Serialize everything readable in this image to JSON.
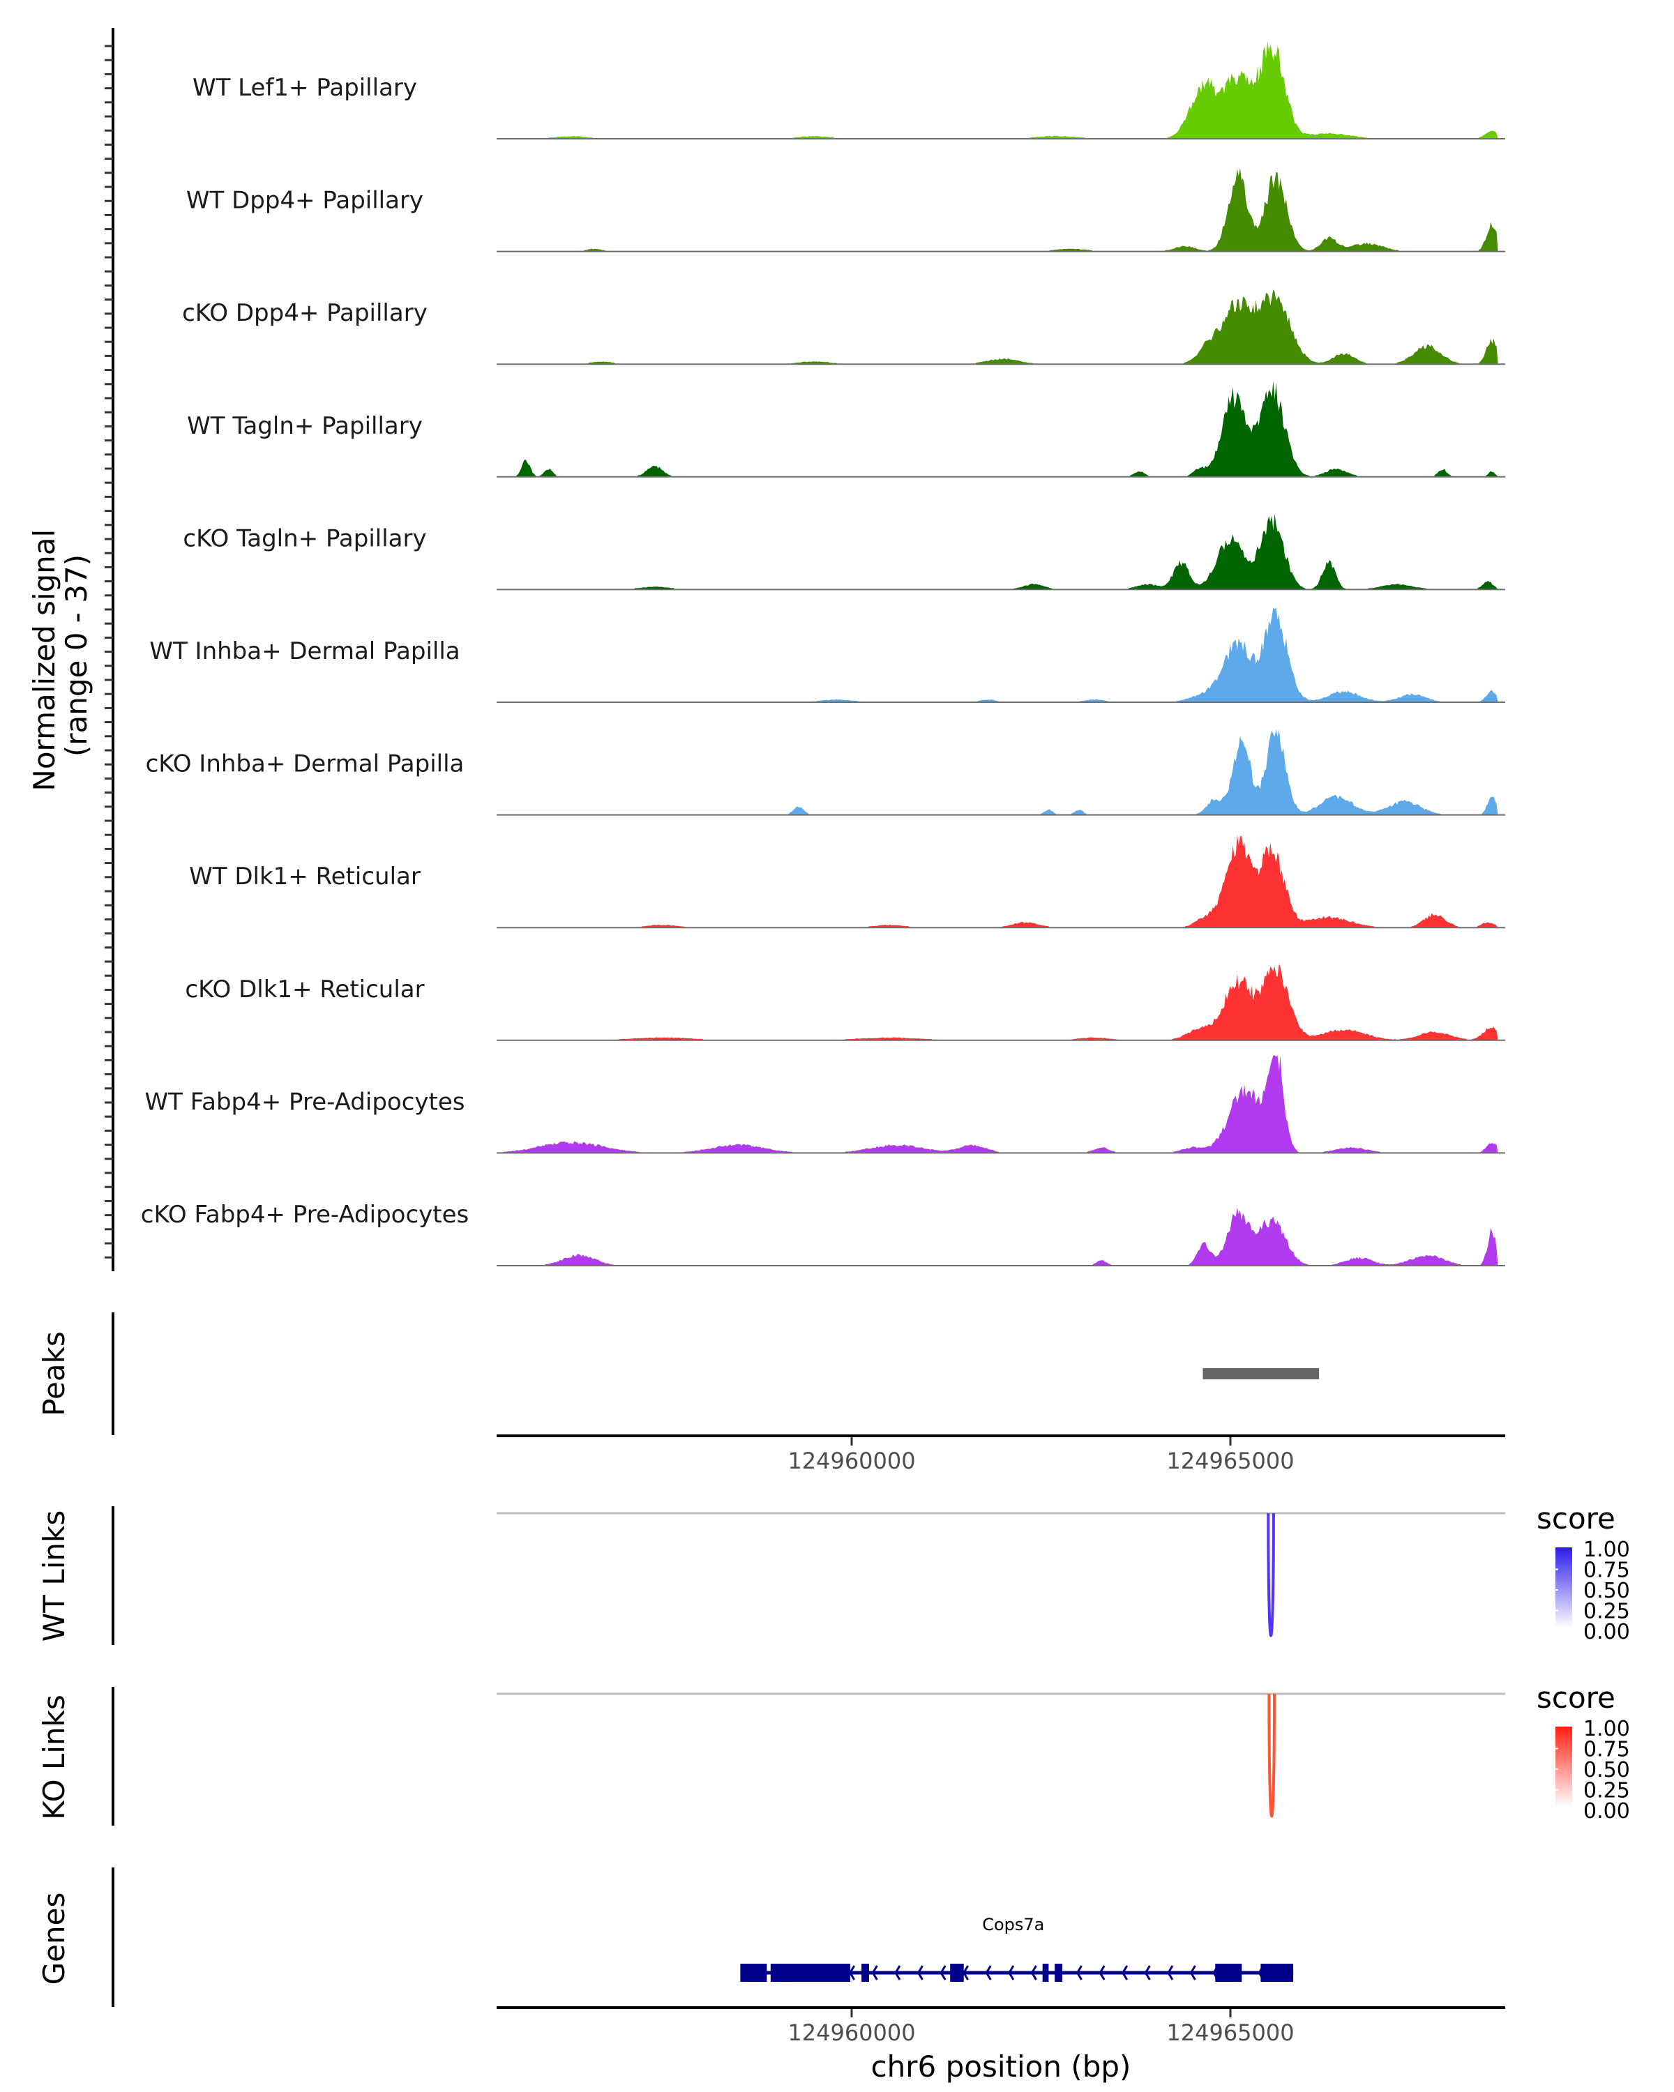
{
  "chart_data": {
    "type": "area",
    "title": "",
    "region": {
      "chrom": "chr6",
      "start": 124955313,
      "end": 124968628
    },
    "xlabel": "chr6 position (bp)",
    "x_ticks": [
      124960000,
      124965000
    ],
    "x_tick_labels": [
      "124960000",
      "124965000"
    ],
    "coverage": {
      "ylabel": "Normalized signal\n(range 0 - 37)",
      "ylabel_lines": [
        "Normalized signal",
        "(range 0 - 37)"
      ],
      "ylim": [
        0,
        37
      ],
      "tracks": [
        {
          "name": "WT Lef1+ Papillary",
          "color": "#66CC00",
          "peaks": [
            [
              124964650,
              20,
              250
            ],
            [
              124965100,
              22,
              240
            ],
            [
              124965550,
              34,
              230
            ],
            [
              124966300,
              2,
              400
            ],
            [
              124968450,
              3,
              120
            ],
            [
              124956300,
              1,
              300
            ],
            [
              124959500,
              1,
              300
            ],
            [
              124962700,
              1,
              400
            ]
          ]
        },
        {
          "name": "WT Dpp4+ Papillary",
          "color": "#448B00",
          "peaks": [
            [
              124965100,
              29,
              180
            ],
            [
              124965600,
              28,
              200
            ],
            [
              124966300,
              5,
              150
            ],
            [
              124966800,
              3,
              300
            ],
            [
              124968450,
              10,
              100
            ],
            [
              124964400,
              2,
              200
            ],
            [
              124956600,
              1,
              150
            ],
            [
              124962900,
              1,
              300
            ]
          ]
        },
        {
          "name": "cKO Dpp4+ Papillary",
          "color": "#448B00",
          "peaks": [
            [
              124964700,
              5,
              200
            ],
            [
              124965100,
              22,
              300
            ],
            [
              124965600,
              24,
              280
            ],
            [
              124966500,
              4,
              200
            ],
            [
              124967600,
              7,
              250
            ],
            [
              124968450,
              9,
              100
            ],
            [
              124962000,
              2,
              300
            ],
            [
              124956700,
              1,
              200
            ],
            [
              124959500,
              1,
              300
            ]
          ]
        },
        {
          "name": "WT Tagln+ Papillary",
          "color": "#006400",
          "peaks": [
            [
              124965050,
              30,
              220
            ],
            [
              124965550,
              33,
              230
            ],
            [
              124964600,
              3,
              120
            ],
            [
              124966400,
              3,
              200
            ],
            [
              124955700,
              6,
              80
            ],
            [
              124956000,
              3,
              80
            ],
            [
              124957400,
              4,
              150
            ],
            [
              124967800,
              3,
              80
            ],
            [
              124968450,
              2,
              60
            ],
            [
              124963800,
              2,
              100
            ]
          ]
        },
        {
          "name": "cKO Tagln+ Papillary",
          "color": "#006400",
          "peaks": [
            [
              124964350,
              10,
              150
            ],
            [
              124965000,
              19,
              250
            ],
            [
              124965550,
              26,
              220
            ],
            [
              124966300,
              10,
              120
            ],
            [
              124967200,
              2,
              300
            ],
            [
              124968400,
              3,
              100
            ],
            [
              124957400,
              1,
              300
            ],
            [
              124962400,
              2,
              200
            ],
            [
              124963900,
              2,
              200
            ]
          ]
        },
        {
          "name": "WT Inhba+ Dermal Papilla",
          "color": "#5DA9E9",
          "peaks": [
            [
              124964700,
              3,
              300
            ],
            [
              124965100,
              22,
              250
            ],
            [
              124965600,
              32,
              220
            ],
            [
              124966500,
              4,
              300
            ],
            [
              124967400,
              3,
              250
            ],
            [
              124968450,
              4,
              100
            ],
            [
              124959800,
              1,
              300
            ],
            [
              124961800,
              1,
              150
            ],
            [
              124963200,
              1,
              200
            ]
          ]
        },
        {
          "name": "cKO Inhba+ Dermal Papilla",
          "color": "#5DA9E9",
          "peaks": [
            [
              124964800,
              6,
              150
            ],
            [
              124965150,
              28,
              160
            ],
            [
              124965600,
              32,
              180
            ],
            [
              124966400,
              7,
              300
            ],
            [
              124967300,
              5,
              300
            ],
            [
              124968450,
              7,
              80
            ],
            [
              124959300,
              3,
              100
            ],
            [
              124962600,
              2,
              80
            ],
            [
              124963000,
              2,
              80
            ]
          ]
        },
        {
          "name": "WT Dlk1+ Reticular",
          "color": "#FF3333",
          "peaks": [
            [
              124964700,
              4,
              200
            ],
            [
              124965100,
              31,
              220
            ],
            [
              124965550,
              29,
              220
            ],
            [
              124966300,
              4,
              400
            ],
            [
              124967700,
              5,
              200
            ],
            [
              124968400,
              2,
              120
            ],
            [
              124962300,
              2,
              250
            ],
            [
              124960500,
              1,
              300
            ],
            [
              124957500,
              1,
              300
            ]
          ]
        },
        {
          "name": "cKO Dlk1+ Reticular",
          "color": "#FF3333",
          "peaks": [
            [
              124964600,
              4,
              250
            ],
            [
              124965100,
              22,
              260
            ],
            [
              124965600,
              26,
              240
            ],
            [
              124966500,
              4,
              400
            ],
            [
              124967700,
              3,
              300
            ],
            [
              124968450,
              5,
              150
            ],
            [
              124957500,
              1,
              600
            ],
            [
              124960500,
              1,
              600
            ],
            [
              124963200,
              1,
              300
            ]
          ]
        },
        {
          "name": "WT Fabp4+ Pre-Adipocytes",
          "color": "#B23AEE",
          "peaks": [
            [
              124965200,
              24,
              300
            ],
            [
              124965600,
              37,
              140
            ],
            [
              124964500,
              2,
              200
            ],
            [
              124966600,
              2,
              300
            ],
            [
              124968450,
              4,
              100
            ],
            [
              124956300,
              4,
              600
            ],
            [
              124958500,
              3,
              500
            ],
            [
              124960600,
              3,
              500
            ],
            [
              124961600,
              3,
              250
            ],
            [
              124963300,
              2,
              150
            ]
          ]
        },
        {
          "name": "cKO Fabp4+ Pre-Adipocytes",
          "color": "#B23AEE",
          "peaks": [
            [
              124964650,
              8,
              120
            ],
            [
              124965100,
              19,
              200
            ],
            [
              124965550,
              17,
              250
            ],
            [
              124966700,
              3,
              250
            ],
            [
              124967600,
              4,
              300
            ],
            [
              124968450,
              13,
              80
            ],
            [
              124956400,
              4,
              300
            ],
            [
              124963300,
              2,
              100
            ]
          ]
        }
      ]
    },
    "peaks_track": {
      "label": "Peaks",
      "color": "#666666",
      "regions": [
        [
          124964636,
          124966170
        ]
      ]
    },
    "links": [
      {
        "label": "WT Links",
        "start": 124965500,
        "end": 124965570,
        "score": 1.0,
        "color_high": "#2B1BEB",
        "color_low": "#FFFFFF"
      },
      {
        "label": "KO Links",
        "start": 124965510,
        "end": 124965580,
        "score": 0.85,
        "color_high": "#FF2010",
        "color_low": "#FFFFFF"
      }
    ],
    "legends": [
      {
        "title": "score",
        "ticks": [
          "1.00",
          "0.75",
          "0.50",
          "0.25",
          "0.00"
        ],
        "color_high": "#2B1BEB",
        "color_low": "#FFFFFF"
      },
      {
        "title": "score",
        "ticks": [
          "1.00",
          "0.75",
          "0.50",
          "0.25",
          "0.00"
        ],
        "color_high": "#FF2010",
        "color_low": "#FFFFFF"
      }
    ],
    "genes_track": {
      "label": "Genes",
      "color": "#00008B",
      "genes": [
        {
          "name": "Cops7a",
          "start": 124958530,
          "end": 124965830,
          "strand": "-",
          "exons": [
            [
              124958530,
              124958880
            ],
            [
              124958930,
              124959300
            ],
            [
              124959300,
              124959700
            ],
            [
              124959680,
              124959980
            ],
            [
              124960130,
              124960230
            ],
            [
              124961300,
              124961480
            ],
            [
              124962520,
              124962600
            ],
            [
              124962680,
              124962780
            ],
            [
              124964800,
              124965150
            ],
            [
              124965400,
              124965830
            ]
          ]
        }
      ]
    }
  }
}
